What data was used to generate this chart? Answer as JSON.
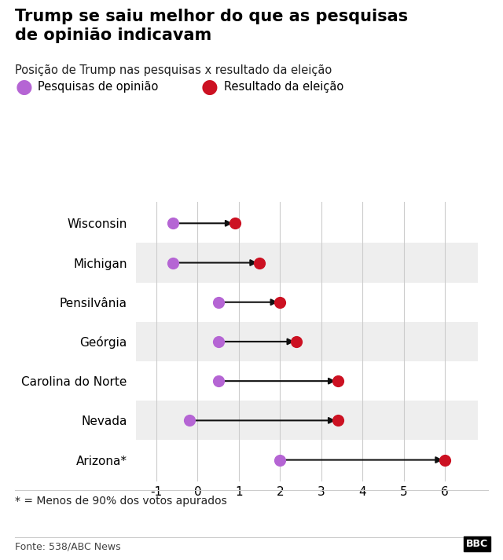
{
  "title": "Trump se saiu melhor do que as pesquisas\nde opinião indicavam",
  "subtitle": "Posição de Trump nas pesquisas x resultado da eleição",
  "legend_poll": "Pesquisas de opinião",
  "legend_result": "Resultado da eleição",
  "states": [
    "Wisconsin",
    "Michigan",
    "Pensilvânia",
    "Geórgia",
    "Carolina do Norte",
    "Nevada",
    "Arizona*"
  ],
  "poll_values": [
    -0.6,
    -0.6,
    0.5,
    0.5,
    0.5,
    -0.2,
    2.0
  ],
  "result_values": [
    0.9,
    1.5,
    2.0,
    2.4,
    3.4,
    3.4,
    6.0
  ],
  "poll_color": "#b565d4",
  "result_color": "#cc1122",
  "arrow_color": "#111111",
  "xlim": [
    -1.5,
    6.8
  ],
  "xticks": [
    -1,
    0,
    1,
    2,
    3,
    4,
    5,
    6
  ],
  "footnote": "* = Menos de 90% dos votos apurados",
  "source": "Fonte: 538/ABC News",
  "bg_color": "#ffffff",
  "row_alt_color": "#eeeeee",
  "marker_size": 120
}
